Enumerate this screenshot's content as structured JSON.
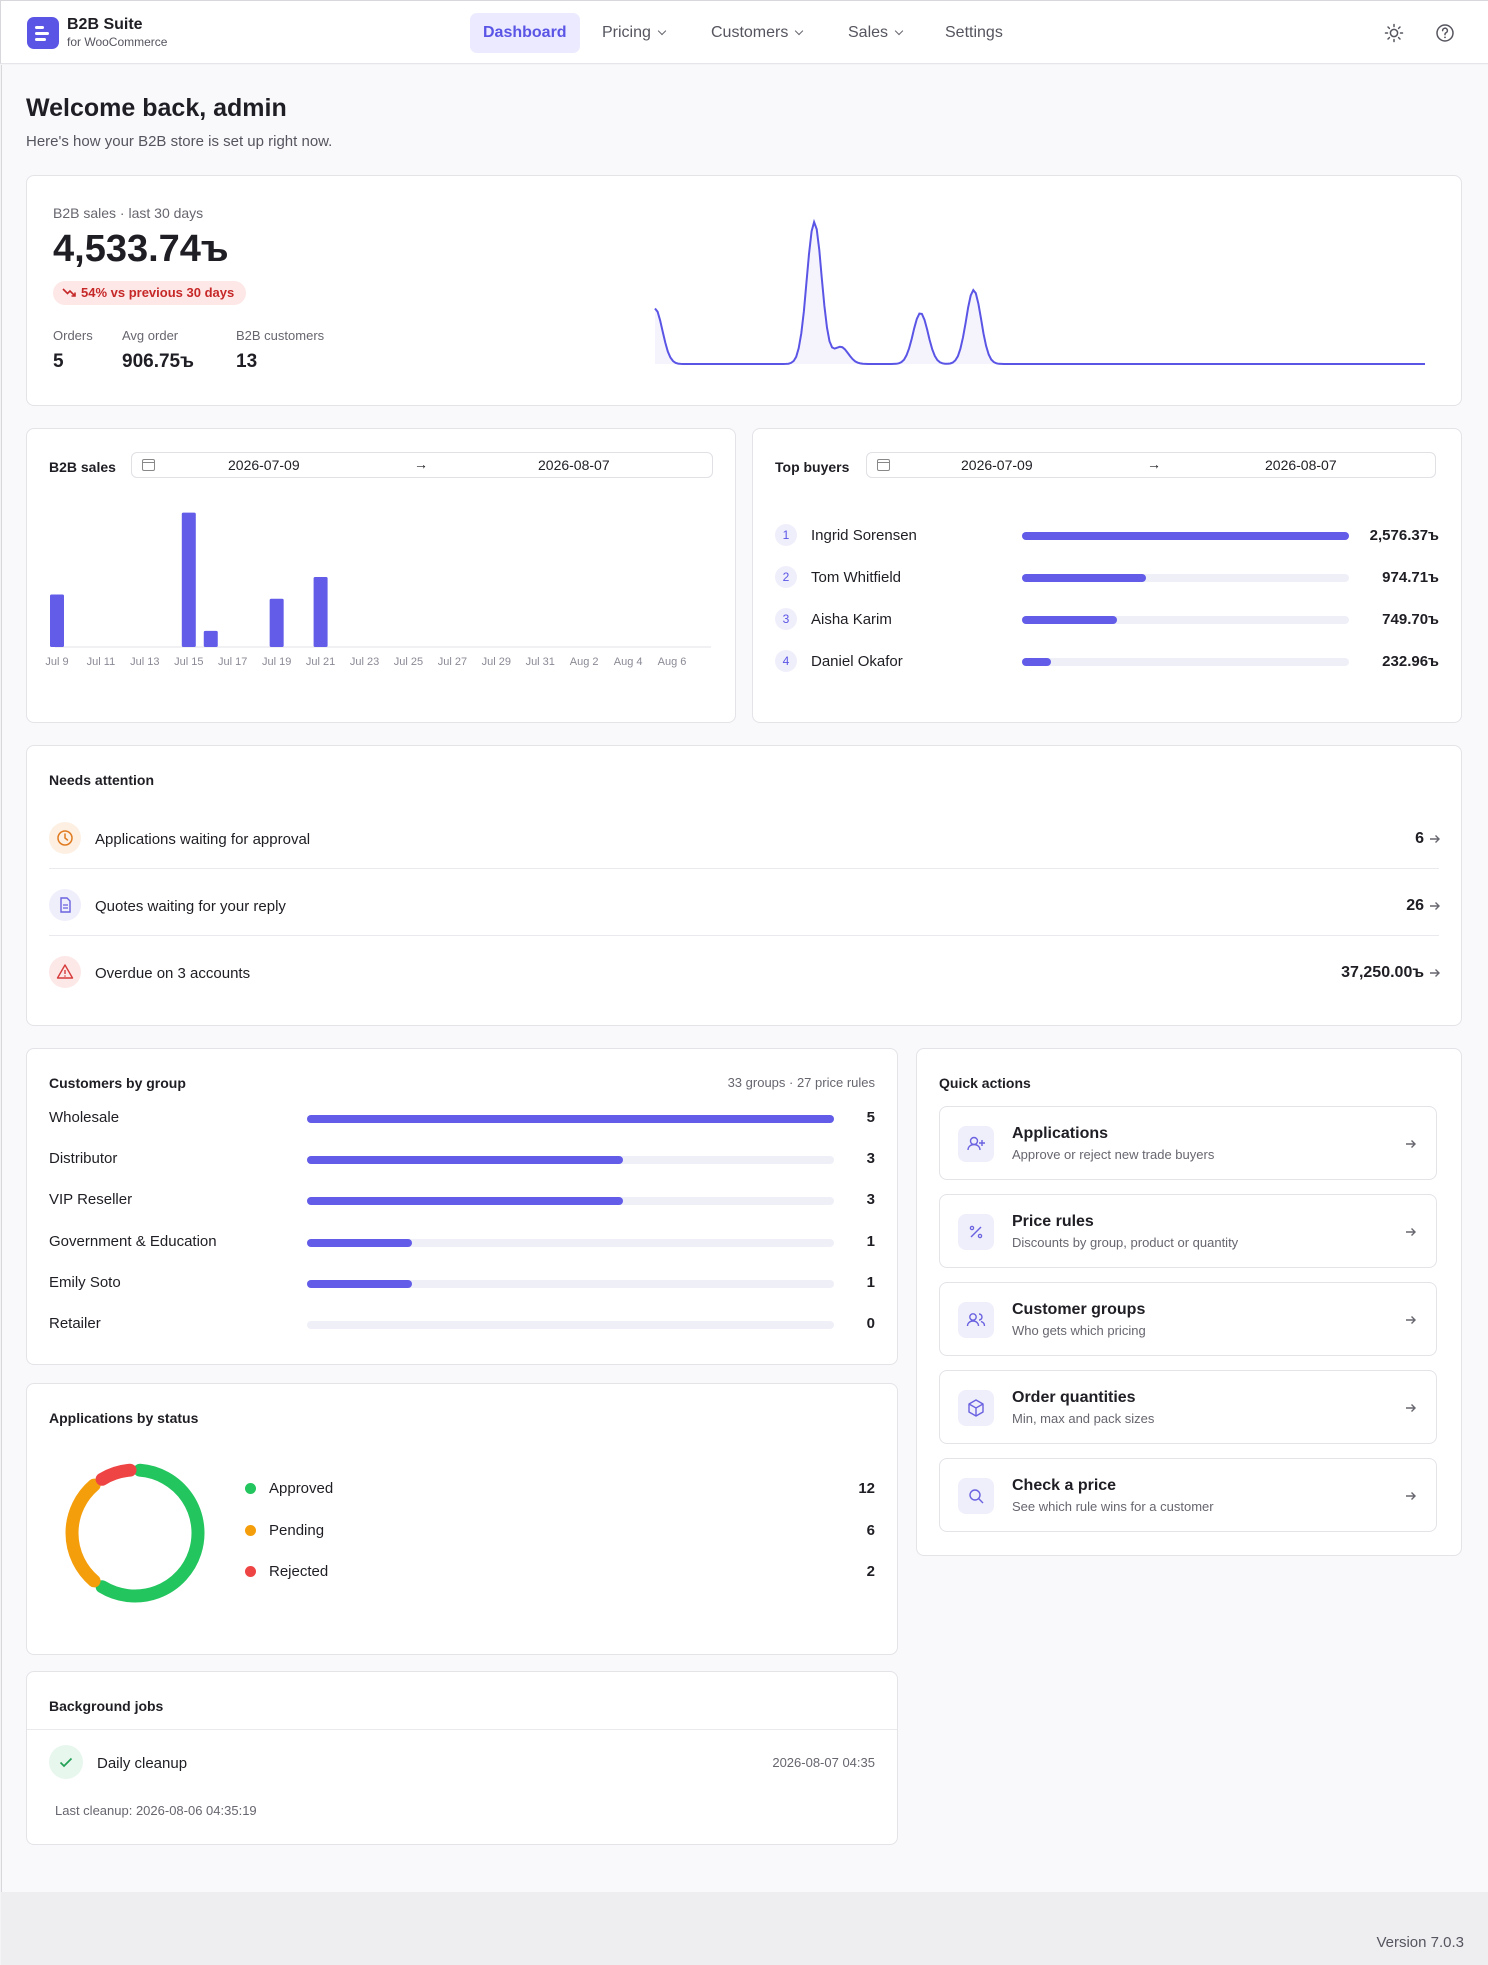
{
  "app": {
    "title": "B2B Suite",
    "subtitle": "for WooCommerce"
  },
  "nav": [
    {
      "label": "Dashboard",
      "active": true,
      "has_menu": false
    },
    {
      "label": "Pricing",
      "has_menu": true
    },
    {
      "label": "Customers",
      "has_menu": true
    },
    {
      "label": "Sales",
      "has_menu": true
    },
    {
      "label": "Settings",
      "has_menu": false
    }
  ],
  "header_icons": [
    "sun-icon",
    "help-icon"
  ],
  "welcome": {
    "title": "Welcome back, admin",
    "subtitle": "Here's how your B2B store is set up right now."
  },
  "summary": {
    "label": "B2B sales · last 30 days",
    "total": "4,533.74ъ",
    "change": "54% vs previous 30 days",
    "stats": [
      {
        "label": "Orders",
        "value": "5"
      },
      {
        "label": "Avg order",
        "value": "906.75ъ"
      },
      {
        "label": "B2B customers",
        "value": "13"
      }
    ]
  },
  "sales_chart": {
    "title": "B2B sales",
    "date_from": "2026-07-09",
    "date_to": "2026-08-07",
    "chart_data": {
      "type": "bar",
      "categories": [
        "Jul 9",
        "Jul 10",
        "Jul 11",
        "Jul 12",
        "Jul 13",
        "Jul 14",
        "Jul 15",
        "Jul 16",
        "Jul 17",
        "Jul 18",
        "Jul 19",
        "Jul 20",
        "Jul 21",
        "Jul 22",
        "Jul 23",
        "Jul 24",
        "Jul 25",
        "Jul 26",
        "Jul 27",
        "Jul 28",
        "Jul 29",
        "Jul 30",
        "Jul 31",
        "Aug 1",
        "Aug 2",
        "Aug 3",
        "Aug 4",
        "Aug 5",
        "Aug 6",
        "Aug 7"
      ],
      "tick_labels": [
        "Jul 9",
        "Jul 11",
        "Jul 13",
        "Jul 15",
        "Jul 17",
        "Jul 19",
        "Jul 21",
        "Jul 23",
        "Jul 25",
        "Jul 27",
        "Jul 29",
        "Jul 31",
        "Aug 2",
        "Aug 4",
        "Aug 6"
      ],
      "values": [
        750,
        0,
        0,
        0,
        0,
        0,
        1920,
        230,
        0,
        0,
        690,
        0,
        1000,
        0,
        0,
        0,
        0,
        0,
        0,
        0,
        0,
        0,
        0,
        0,
        0,
        0,
        0,
        0,
        0,
        0
      ],
      "ylim": [
        0,
        2000
      ]
    }
  },
  "top_buyers": {
    "title": "Top buyers",
    "date_from": "2026-07-09",
    "date_to": "2026-08-07",
    "items": [
      {
        "rank": "1",
        "name": "Ingrid Sorensen",
        "amount": "2,576.37ъ",
        "share": 1.0
      },
      {
        "rank": "2",
        "name": "Tom Whitfield",
        "amount": "974.71ъ",
        "share": 0.378
      },
      {
        "rank": "3",
        "name": "Aisha Karim",
        "amount": "749.70ъ",
        "share": 0.291
      },
      {
        "rank": "4",
        "name": "Daniel Okafor",
        "amount": "232.96ъ",
        "share": 0.09
      }
    ]
  },
  "attention": {
    "title": "Needs attention",
    "items": [
      {
        "label": "Applications waiting for approval",
        "count": "6",
        "icon": "clock-icon",
        "color": "#e07a1f"
      },
      {
        "label": "Quotes waiting for your reply",
        "count": "26",
        "icon": "document-icon",
        "color": "#6a62e0"
      },
      {
        "label": "Overdue on 3 accounts",
        "count": "37,250.00ъ",
        "icon": "warning-icon",
        "color": "#d63b3b"
      }
    ]
  },
  "groups": {
    "title": "Customers by group",
    "meta": "33 groups · 27 price rules",
    "items": [
      {
        "label": "Wholesale",
        "count": "5",
        "value": 5
      },
      {
        "label": "Distributor",
        "count": "3",
        "value": 3
      },
      {
        "label": "VIP Reseller",
        "count": "3",
        "value": 3
      },
      {
        "label": "Government & Education",
        "count": "1",
        "value": 1
      },
      {
        "label": "Emily Soto",
        "count": "1",
        "value": 1
      },
      {
        "label": "Retailer",
        "count": "0",
        "value": 0
      }
    ]
  },
  "applications": {
    "title": "Applications by status",
    "chart_data": {
      "type": "pie",
      "labels": [
        "Approved",
        "Pending",
        "Rejected"
      ],
      "values": [
        12,
        6,
        2
      ],
      "colors": [
        "#22c55e",
        "#f59e0b",
        "#ef4444"
      ]
    },
    "legend": [
      {
        "label": "Approved",
        "count": "12"
      },
      {
        "label": "Pending",
        "count": "6"
      },
      {
        "label": "Rejected",
        "count": "2"
      }
    ]
  },
  "quick_actions": {
    "title": "Quick actions",
    "items": [
      {
        "title": "Applications",
        "desc": "Approve or reject new trade buyers",
        "icon": "user-plus-icon"
      },
      {
        "title": "Price rules",
        "desc": "Discounts by group, product or quantity",
        "icon": "percent-icon"
      },
      {
        "title": "Customer groups",
        "desc": "Who gets which pricing",
        "icon": "users-icon"
      },
      {
        "title": "Order quantities",
        "desc": "Min, max and pack sizes",
        "icon": "box-icon"
      },
      {
        "title": "Check a price",
        "desc": "See which rule wins for a customer",
        "icon": "search-icon"
      }
    ]
  },
  "jobs": {
    "title": "Background jobs",
    "items": [
      {
        "name": "Daily cleanup",
        "time": "2026-08-07 04:35"
      }
    ],
    "last": "Last cleanup: 2026-08-06 04:35:19"
  },
  "footer": {
    "version": "Version 7.0.3"
  },
  "colors": {
    "accent": "#5b55e6",
    "danger": "#c62828",
    "success": "#22c55e"
  }
}
